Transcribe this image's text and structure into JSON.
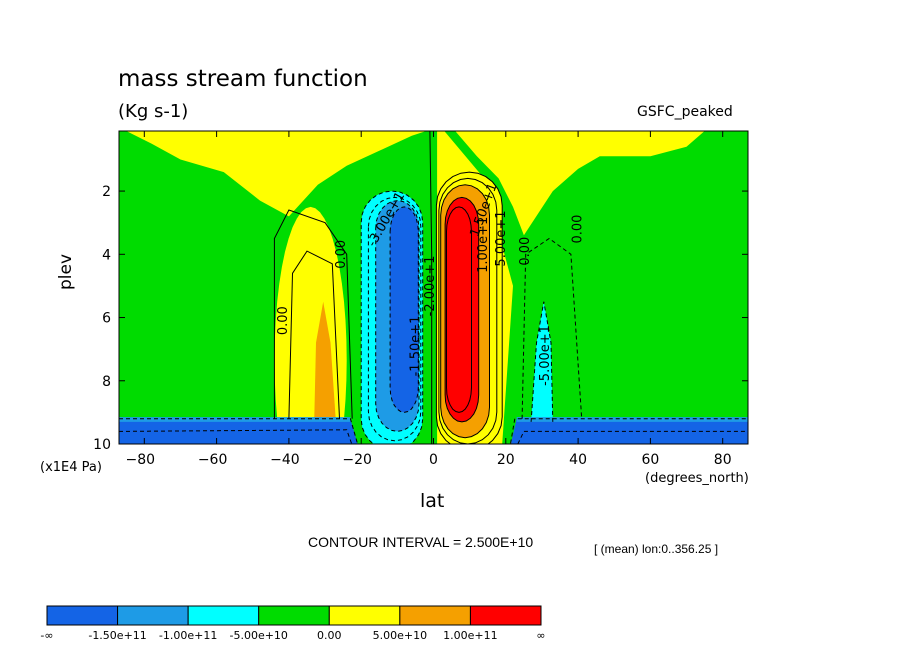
{
  "header": {
    "title": "mass stream function",
    "units": "(Kg s-1)",
    "dataset": "GSFC_peaked"
  },
  "axes": {
    "ylabel": "plev",
    "yunits": "(x1E4 Pa)",
    "xlabel": "lat",
    "xunits": "(degrees_north)"
  },
  "footer": {
    "contour_interval": "CONTOUR INTERVAL = 2.500E+10",
    "mean_note": "[ (mean) lon:0..356.25 ]"
  },
  "colors": {
    "c0": "#1464e6",
    "c1": "#1e9be6",
    "c2": "#00ffff",
    "c3": "#00dc00",
    "c4": "#ffff00",
    "c5": "#f5a000",
    "c6": "#ff0000"
  },
  "contour_labels": [
    {
      "text": "0.00",
      "lat": -25.5,
      "p": 4.0,
      "rot": -90
    },
    {
      "text": "0.00",
      "lat": -41.5,
      "p": 6.1,
      "rot": -90
    },
    {
      "text": "-3.00e+1",
      "lat": -13.0,
      "p": 2.9,
      "rot": -60
    },
    {
      "text": "-2.00e+1",
      "lat": -0.8,
      "p": 5.0,
      "rot": -90
    },
    {
      "text": "-1.50e+1",
      "lat": -4.8,
      "p": 6.9,
      "rot": -90
    },
    {
      "text": "1.50e+1",
      "lat": 14.0,
      "p": 2.6,
      "rot": -70
    },
    {
      "text": "1.00e+1",
      "lat": 13.8,
      "p": 3.7,
      "rot": -90
    },
    {
      "text": "5.00e+1",
      "lat": 18.8,
      "p": 3.5,
      "rot": -90
    },
    {
      "text": "0.00",
      "lat": 25.5,
      "p": 3.9,
      "rot": -90
    },
    {
      "text": "0.00",
      "lat": 40.0,
      "p": 3.2,
      "rot": -90
    },
    {
      "text": "-5.00e+1",
      "lat": 31.0,
      "p": 7.2,
      "rot": -90
    }
  ],
  "chart_data": {
    "type": "heatmap",
    "subtype": "filled contour",
    "title": "mass stream function",
    "xlabel": "lat",
    "ylabel": "plev",
    "xlim": [
      -87,
      87
    ],
    "ylim": [
      0.1,
      10
    ],
    "y_inverted": true,
    "x_ticks": [
      -80,
      -60,
      -40,
      -20,
      0,
      20,
      40,
      60,
      80
    ],
    "y_ticks": [
      2,
      4,
      6,
      8,
      10
    ],
    "contour_interval": 25000000000,
    "colorbar": {
      "labels": [
        "-∞",
        "-1.50e+11",
        "-1.00e+11",
        "-5.00e+10",
        "0.00",
        "5.00e+10",
        "1.00e+11",
        "∞"
      ],
      "bins": [
        {
          "range": [
            "-inf",
            -150000000000
          ],
          "color": "#1464e6"
        },
        {
          "range": [
            -150000000000,
            -100000000000
          ],
          "color": "#1e9be6"
        },
        {
          "range": [
            -100000000000,
            -50000000000
          ],
          "color": "#00ffff"
        },
        {
          "range": [
            -50000000000,
            0
          ],
          "color": "#00dc00"
        },
        {
          "range": [
            0,
            50000000000
          ],
          "color": "#ffff00"
        },
        {
          "range": [
            50000000000,
            100000000000
          ],
          "color": "#f5a000"
        },
        {
          "range": [
            100000000000,
            "inf"
          ],
          "color": "#ff0000"
        }
      ]
    },
    "features": [
      {
        "name": "southern-hadley-cell",
        "sign": "negative",
        "lat_range": [
          -20,
          -1
        ],
        "p_range": [
          1.2,
          10
        ],
        "core": {
          "lat": -8,
          "p": 5.5,
          "level": "c0"
        }
      },
      {
        "name": "northern-hadley-cell",
        "sign": "positive",
        "lat_range": [
          0,
          20
        ],
        "p_range": [
          1.2,
          10
        ],
        "core": {
          "lat": 7,
          "p": 5.5,
          "level": "c6"
        }
      },
      {
        "name": "southern-ferrel-cell",
        "sign": "positive",
        "lat_range": [
          -45,
          -22
        ],
        "p_range": [
          2.5,
          10
        ],
        "core": {
          "lat": -30,
          "p": 7.5,
          "level": "c5"
        }
      },
      {
        "name": "northern-ferrel-cell",
        "sign": "negative",
        "lat_range": [
          22,
          42
        ],
        "p_range": [
          2.5,
          10
        ],
        "core": {
          "lat": 31,
          "p": 7.5,
          "level": "c2"
        }
      },
      {
        "name": "southern-surface-band",
        "sign": "negative",
        "lat_range": [
          -87,
          -20
        ],
        "p_range": [
          9.2,
          10
        ],
        "level": "c0"
      },
      {
        "name": "northern-surface-band",
        "sign": "negative",
        "lat_range": [
          21,
          87
        ],
        "p_range": [
          9.2,
          10
        ],
        "level": "c0"
      }
    ]
  }
}
